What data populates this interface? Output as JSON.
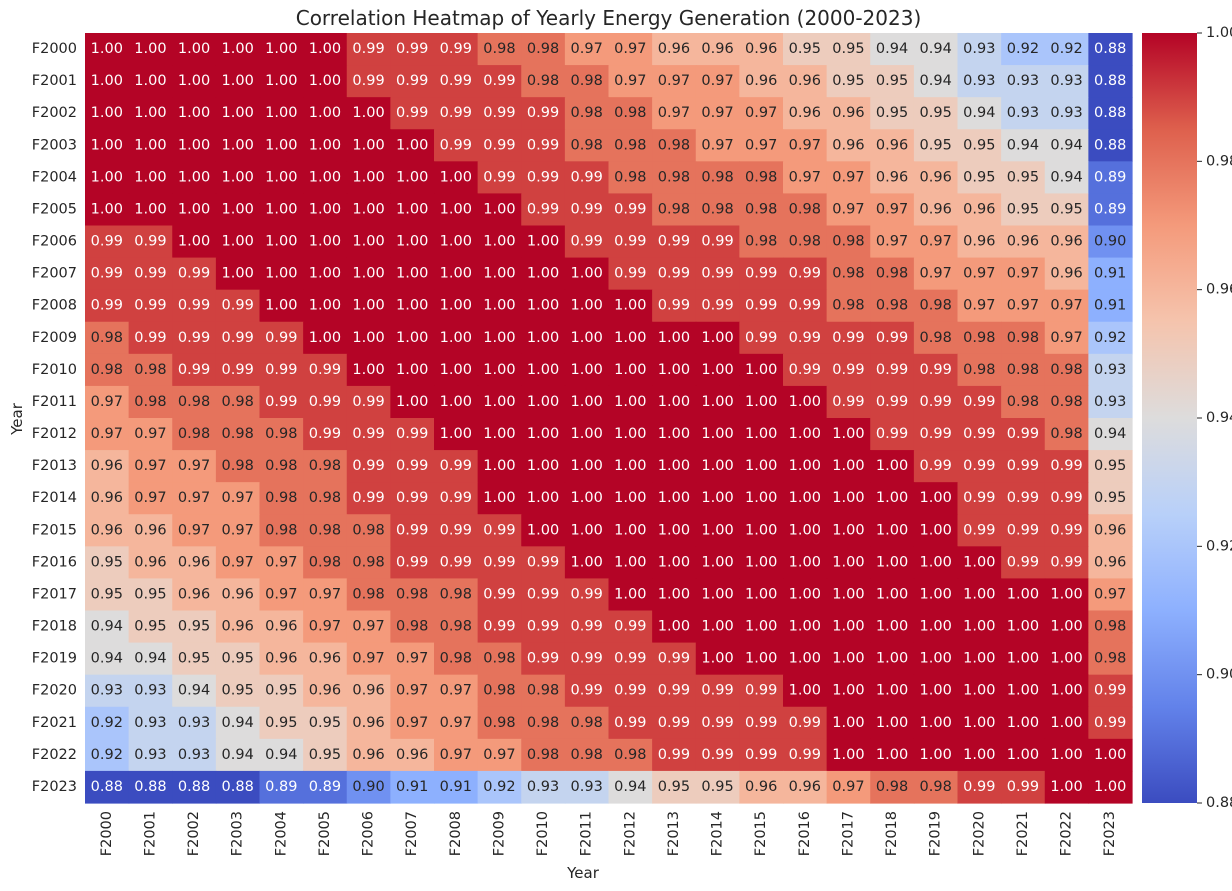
{
  "chart_data": {
    "type": "heatmap",
    "title": "Correlation Heatmap of Yearly Energy Generation (2000-2023)",
    "xlabel": "Year",
    "ylabel": "Year",
    "colormap": "coolwarm",
    "vmin": 0.88,
    "vmax": 1.0,
    "colorbar_ticks": [
      "0.88",
      "0.90",
      "0.92",
      "0.94",
      "0.96",
      "0.98",
      "1.00"
    ],
    "labels": [
      "F2000",
      "F2001",
      "F2002",
      "F2003",
      "F2004",
      "F2005",
      "F2006",
      "F2007",
      "F2008",
      "F2009",
      "F2010",
      "F2011",
      "F2012",
      "F2013",
      "F2014",
      "F2015",
      "F2016",
      "F2017",
      "F2018",
      "F2019",
      "F2020",
      "F2021",
      "F2022",
      "F2023"
    ],
    "matrix": [
      [
        1.0,
        1.0,
        1.0,
        1.0,
        1.0,
        1.0,
        0.99,
        0.99,
        0.99,
        0.98,
        0.98,
        0.97,
        0.97,
        0.96,
        0.96,
        0.96,
        0.95,
        0.95,
        0.94,
        0.94,
        0.93,
        0.92,
        0.92,
        0.88
      ],
      [
        1.0,
        1.0,
        1.0,
        1.0,
        1.0,
        1.0,
        0.99,
        0.99,
        0.99,
        0.99,
        0.98,
        0.98,
        0.97,
        0.97,
        0.97,
        0.96,
        0.96,
        0.95,
        0.95,
        0.94,
        0.93,
        0.93,
        0.93,
        0.88
      ],
      [
        1.0,
        1.0,
        1.0,
        1.0,
        1.0,
        1.0,
        1.0,
        0.99,
        0.99,
        0.99,
        0.99,
        0.98,
        0.98,
        0.97,
        0.97,
        0.97,
        0.96,
        0.96,
        0.95,
        0.95,
        0.94,
        0.93,
        0.93,
        0.88
      ],
      [
        1.0,
        1.0,
        1.0,
        1.0,
        1.0,
        1.0,
        1.0,
        1.0,
        0.99,
        0.99,
        0.99,
        0.98,
        0.98,
        0.98,
        0.97,
        0.97,
        0.97,
        0.96,
        0.96,
        0.95,
        0.95,
        0.94,
        0.94,
        0.88
      ],
      [
        1.0,
        1.0,
        1.0,
        1.0,
        1.0,
        1.0,
        1.0,
        1.0,
        1.0,
        0.99,
        0.99,
        0.99,
        0.98,
        0.98,
        0.98,
        0.98,
        0.97,
        0.97,
        0.96,
        0.96,
        0.95,
        0.95,
        0.94,
        0.89
      ],
      [
        1.0,
        1.0,
        1.0,
        1.0,
        1.0,
        1.0,
        1.0,
        1.0,
        1.0,
        1.0,
        0.99,
        0.99,
        0.99,
        0.98,
        0.98,
        0.98,
        0.98,
        0.97,
        0.97,
        0.96,
        0.96,
        0.95,
        0.95,
        0.89
      ],
      [
        0.99,
        0.99,
        1.0,
        1.0,
        1.0,
        1.0,
        1.0,
        1.0,
        1.0,
        1.0,
        1.0,
        0.99,
        0.99,
        0.99,
        0.99,
        0.98,
        0.98,
        0.98,
        0.97,
        0.97,
        0.96,
        0.96,
        0.96,
        0.9
      ],
      [
        0.99,
        0.99,
        0.99,
        1.0,
        1.0,
        1.0,
        1.0,
        1.0,
        1.0,
        1.0,
        1.0,
        1.0,
        0.99,
        0.99,
        0.99,
        0.99,
        0.99,
        0.98,
        0.98,
        0.97,
        0.97,
        0.97,
        0.96,
        0.91
      ],
      [
        0.99,
        0.99,
        0.99,
        0.99,
        1.0,
        1.0,
        1.0,
        1.0,
        1.0,
        1.0,
        1.0,
        1.0,
        1.0,
        0.99,
        0.99,
        0.99,
        0.99,
        0.98,
        0.98,
        0.98,
        0.97,
        0.97,
        0.97,
        0.91
      ],
      [
        0.98,
        0.99,
        0.99,
        0.99,
        0.99,
        1.0,
        1.0,
        1.0,
        1.0,
        1.0,
        1.0,
        1.0,
        1.0,
        1.0,
        1.0,
        0.99,
        0.99,
        0.99,
        0.99,
        0.98,
        0.98,
        0.98,
        0.97,
        0.92
      ],
      [
        0.98,
        0.98,
        0.99,
        0.99,
        0.99,
        0.99,
        1.0,
        1.0,
        1.0,
        1.0,
        1.0,
        1.0,
        1.0,
        1.0,
        1.0,
        1.0,
        0.99,
        0.99,
        0.99,
        0.99,
        0.98,
        0.98,
        0.98,
        0.93
      ],
      [
        0.97,
        0.98,
        0.98,
        0.98,
        0.99,
        0.99,
        0.99,
        1.0,
        1.0,
        1.0,
        1.0,
        1.0,
        1.0,
        1.0,
        1.0,
        1.0,
        1.0,
        0.99,
        0.99,
        0.99,
        0.99,
        0.98,
        0.98,
        0.93
      ],
      [
        0.97,
        0.97,
        0.98,
        0.98,
        0.98,
        0.99,
        0.99,
        0.99,
        1.0,
        1.0,
        1.0,
        1.0,
        1.0,
        1.0,
        1.0,
        1.0,
        1.0,
        1.0,
        0.99,
        0.99,
        0.99,
        0.99,
        0.98,
        0.94
      ],
      [
        0.96,
        0.97,
        0.97,
        0.98,
        0.98,
        0.98,
        0.99,
        0.99,
        0.99,
        1.0,
        1.0,
        1.0,
        1.0,
        1.0,
        1.0,
        1.0,
        1.0,
        1.0,
        1.0,
        0.99,
        0.99,
        0.99,
        0.99,
        0.95
      ],
      [
        0.96,
        0.97,
        0.97,
        0.97,
        0.98,
        0.98,
        0.99,
        0.99,
        0.99,
        1.0,
        1.0,
        1.0,
        1.0,
        1.0,
        1.0,
        1.0,
        1.0,
        1.0,
        1.0,
        1.0,
        0.99,
        0.99,
        0.99,
        0.95
      ],
      [
        0.96,
        0.96,
        0.97,
        0.97,
        0.98,
        0.98,
        0.98,
        0.99,
        0.99,
        0.99,
        1.0,
        1.0,
        1.0,
        1.0,
        1.0,
        1.0,
        1.0,
        1.0,
        1.0,
        1.0,
        0.99,
        0.99,
        0.99,
        0.96
      ],
      [
        0.95,
        0.96,
        0.96,
        0.97,
        0.97,
        0.98,
        0.98,
        0.99,
        0.99,
        0.99,
        0.99,
        1.0,
        1.0,
        1.0,
        1.0,
        1.0,
        1.0,
        1.0,
        1.0,
        1.0,
        1.0,
        0.99,
        0.99,
        0.96
      ],
      [
        0.95,
        0.95,
        0.96,
        0.96,
        0.97,
        0.97,
        0.98,
        0.98,
        0.98,
        0.99,
        0.99,
        0.99,
        1.0,
        1.0,
        1.0,
        1.0,
        1.0,
        1.0,
        1.0,
        1.0,
        1.0,
        1.0,
        1.0,
        0.97
      ],
      [
        0.94,
        0.95,
        0.95,
        0.96,
        0.96,
        0.97,
        0.97,
        0.98,
        0.98,
        0.99,
        0.99,
        0.99,
        0.99,
        1.0,
        1.0,
        1.0,
        1.0,
        1.0,
        1.0,
        1.0,
        1.0,
        1.0,
        1.0,
        0.98
      ],
      [
        0.94,
        0.94,
        0.95,
        0.95,
        0.96,
        0.96,
        0.97,
        0.97,
        0.98,
        0.98,
        0.99,
        0.99,
        0.99,
        0.99,
        1.0,
        1.0,
        1.0,
        1.0,
        1.0,
        1.0,
        1.0,
        1.0,
        1.0,
        0.98
      ],
      [
        0.93,
        0.93,
        0.94,
        0.95,
        0.95,
        0.96,
        0.96,
        0.97,
        0.97,
        0.98,
        0.98,
        0.99,
        0.99,
        0.99,
        0.99,
        0.99,
        1.0,
        1.0,
        1.0,
        1.0,
        1.0,
        1.0,
        1.0,
        0.99
      ],
      [
        0.92,
        0.93,
        0.93,
        0.94,
        0.95,
        0.95,
        0.96,
        0.97,
        0.97,
        0.98,
        0.98,
        0.98,
        0.99,
        0.99,
        0.99,
        0.99,
        0.99,
        1.0,
        1.0,
        1.0,
        1.0,
        1.0,
        1.0,
        0.99
      ],
      [
        0.92,
        0.93,
        0.93,
        0.94,
        0.94,
        0.95,
        0.96,
        0.96,
        0.97,
        0.97,
        0.98,
        0.98,
        0.98,
        0.99,
        0.99,
        0.99,
        0.99,
        1.0,
        1.0,
        1.0,
        1.0,
        1.0,
        1.0,
        1.0
      ],
      [
        0.88,
        0.88,
        0.88,
        0.88,
        0.89,
        0.89,
        0.9,
        0.91,
        0.91,
        0.92,
        0.93,
        0.93,
        0.94,
        0.95,
        0.95,
        0.96,
        0.96,
        0.97,
        0.98,
        0.98,
        0.99,
        0.99,
        1.0,
        1.0
      ]
    ]
  }
}
